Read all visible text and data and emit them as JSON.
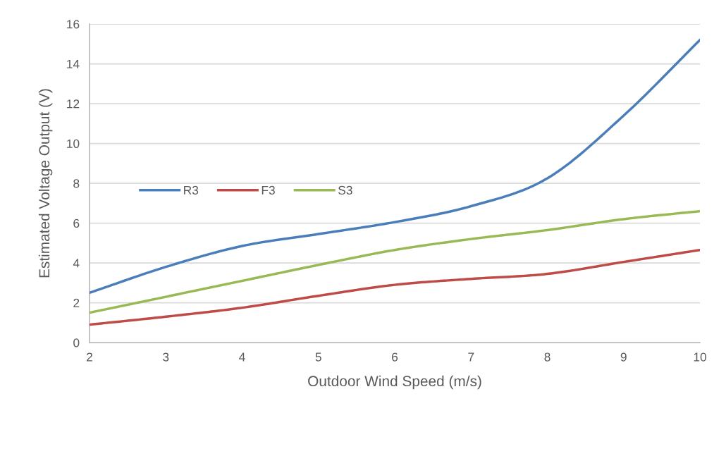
{
  "chart_data": {
    "type": "line",
    "xlabel": "Outdoor Wind Speed (m/s)",
    "ylabel": "Estimated Voltage Output (V)",
    "x": [
      2,
      3,
      4,
      5,
      6,
      7,
      8,
      9,
      10
    ],
    "series": [
      {
        "name": "R3",
        "color": "#4a7ebb",
        "values": [
          2.5,
          3.8,
          4.85,
          5.45,
          6.05,
          6.85,
          8.25,
          11.4,
          15.2
        ]
      },
      {
        "name": "F3",
        "color": "#be4b48",
        "values": [
          0.9,
          1.3,
          1.75,
          2.35,
          2.9,
          3.2,
          3.45,
          4.05,
          4.65
        ]
      },
      {
        "name": "S3",
        "color": "#98b954",
        "values": [
          1.5,
          2.3,
          3.1,
          3.9,
          4.65,
          5.2,
          5.65,
          6.2,
          6.6
        ]
      }
    ],
    "xlim": [
      2,
      10
    ],
    "xticks": [
      2,
      3,
      4,
      5,
      6,
      7,
      8,
      9,
      10
    ],
    "ylim": [
      0,
      16
    ],
    "yticks": [
      0,
      2,
      4,
      6,
      8,
      10,
      12,
      14,
      16
    ],
    "grid": "y",
    "legend": "left",
    "marker": "none",
    "line_style": "solid"
  }
}
